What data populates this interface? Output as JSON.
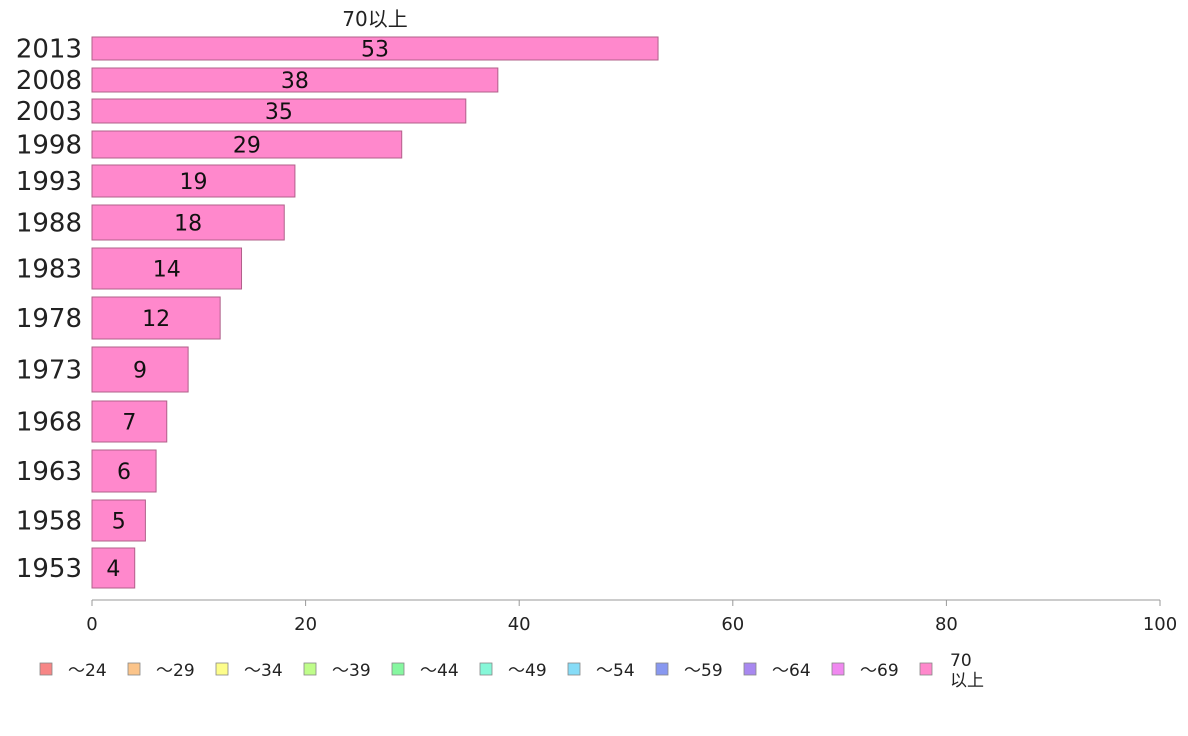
{
  "chart_data": {
    "type": "bar",
    "orientation": "horizontal",
    "title": "70以上",
    "categories": [
      "2013",
      "2008",
      "2003",
      "1998",
      "1993",
      "1988",
      "1983",
      "1978",
      "1973",
      "1968",
      "1963",
      "1958",
      "1953"
    ],
    "series": [
      {
        "name": "70以上",
        "color": "#ff88cc",
        "values": [
          53,
          38,
          35,
          29,
          19,
          18,
          14,
          12,
          9,
          7,
          6,
          5,
          4
        ]
      }
    ],
    "xlim": [
      0,
      100
    ],
    "xticks": [
      0,
      20,
      40,
      60,
      80,
      100
    ],
    "grid": false,
    "legend_position": "bottom",
    "legend": [
      {
        "label": "〜24",
        "color": "#f78686"
      },
      {
        "label": "〜29",
        "color": "#fbc48a"
      },
      {
        "label": "〜34",
        "color": "#fdfd8a"
      },
      {
        "label": "〜39",
        "color": "#bffd8a"
      },
      {
        "label": "〜44",
        "color": "#86f7a0"
      },
      {
        "label": "〜49",
        "color": "#86f7d8"
      },
      {
        "label": "〜54",
        "color": "#86dcf7"
      },
      {
        "label": "〜59",
        "color": "#8898f0"
      },
      {
        "label": "〜64",
        "color": "#a888f0"
      },
      {
        "label": "〜69",
        "color": "#f088f0"
      },
      {
        "label": "70以上",
        "color": "#ff88cc"
      }
    ]
  }
}
